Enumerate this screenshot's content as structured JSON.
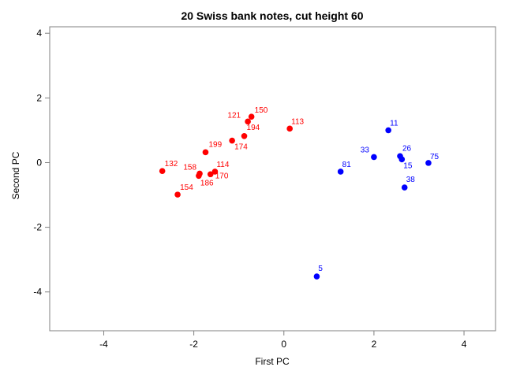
{
  "chart_data": {
    "type": "scatter",
    "title": "20 Swiss bank notes, cut height 60",
    "xlabel": "First PC",
    "ylabel": "Second PC",
    "xlim": [
      -5.2,
      4.7
    ],
    "ylim": [
      -5.2,
      4.2
    ],
    "xticks": [
      -4,
      -2,
      0,
      2,
      4
    ],
    "yticks": [
      -4,
      -2,
      0,
      2,
      4
    ],
    "series": [
      {
        "color": "#ff0000",
        "points": [
          {
            "label": "150",
            "x": -0.72,
            "y": 1.42
          },
          {
            "label": "121",
            "x": -0.8,
            "y": 1.27
          },
          {
            "label": "113",
            "x": 0.13,
            "y": 1.05
          },
          {
            "label": "194",
            "x": -0.88,
            "y": 0.82
          },
          {
            "label": "174",
            "x": -1.15,
            "y": 0.68
          },
          {
            "label": "199",
            "x": -1.74,
            "y": 0.32
          },
          {
            "label": "132",
            "x": -2.7,
            "y": -0.26
          },
          {
            "label": "158",
            "x": -1.87,
            "y": -0.34
          },
          {
            "label": "186",
            "x": -1.89,
            "y": -0.41
          },
          {
            "label": "114",
            "x": -1.53,
            "y": -0.28
          },
          {
            "label": "170",
            "x": -1.63,
            "y": -0.36
          },
          {
            "label": "154",
            "x": -2.36,
            "y": -0.99
          }
        ]
      },
      {
        "color": "#0000ff",
        "points": [
          {
            "label": "11",
            "x": 2.32,
            "y": 1.0
          },
          {
            "label": "33",
            "x": 2.0,
            "y": 0.17
          },
          {
            "label": "26",
            "x": 2.58,
            "y": 0.2
          },
          {
            "label": "15",
            "x": 2.62,
            "y": 0.1
          },
          {
            "label": "75",
            "x": 3.21,
            "y": -0.01
          },
          {
            "label": "81",
            "x": 1.26,
            "y": -0.28
          },
          {
            "label": "38",
            "x": 2.68,
            "y": -0.77
          },
          {
            "label": "5",
            "x": 0.73,
            "y": -3.52
          }
        ]
      }
    ]
  }
}
